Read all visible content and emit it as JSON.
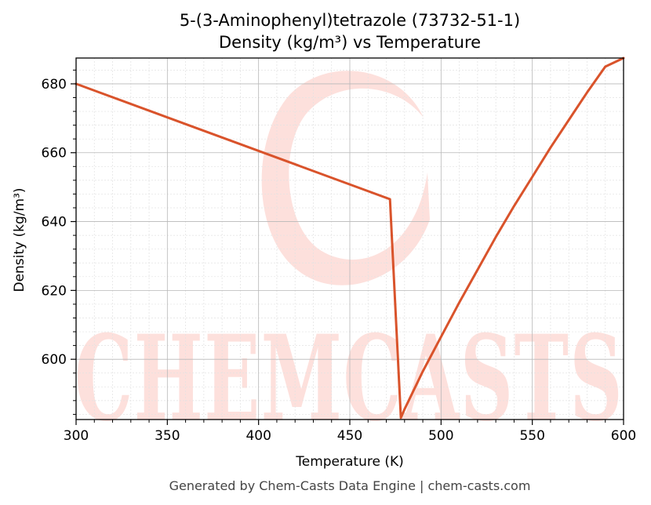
{
  "chart_data": {
    "type": "line",
    "title_line1": "5-(3-Aminophenyl)tetrazole (73732-51-1)",
    "title_line2": "Density (kg/m³) vs Temperature",
    "xlabel": "Temperature (K)",
    "ylabel": "Density (kg/m³)",
    "xlim": [
      300,
      600
    ],
    "ylim": [
      582.5,
      687.5
    ],
    "xticks": [
      300,
      350,
      400,
      450,
      500,
      550,
      600
    ],
    "yticks": [
      600,
      620,
      640,
      660,
      680
    ],
    "grid": true,
    "series": [
      {
        "color": "#d9532b",
        "x": [
          300,
          472,
          478,
          480,
          490,
          500,
          510,
          520,
          530,
          540,
          550,
          560,
          570,
          580,
          590,
          600
        ],
        "y": [
          680,
          646.5,
          583,
          585.5,
          596.5,
          606.5,
          616.5,
          626,
          635.5,
          644.5,
          653,
          661.5,
          669.5,
          677.5,
          685,
          687.5
        ]
      }
    ]
  },
  "watermark": {
    "text": "CHEMCASTS",
    "color": "#fde0dc"
  },
  "footer": "Generated by Chem-Casts Data Engine | chem-casts.com"
}
